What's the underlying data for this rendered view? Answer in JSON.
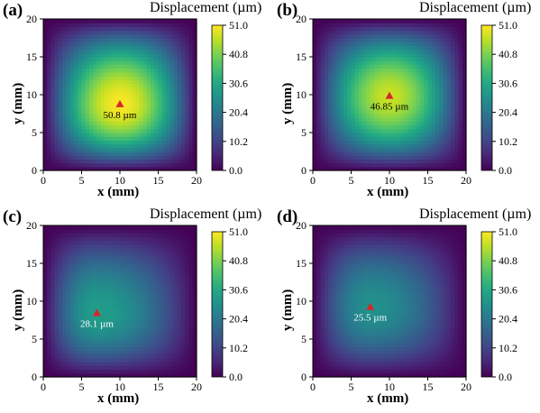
{
  "colorbar": {
    "title": "Displacement (µm)",
    "ticks": [
      "51.0",
      "40.8",
      "30.6",
      "20.4",
      "10.2",
      "0.0"
    ],
    "range": [
      0,
      51
    ]
  },
  "chart_data": [
    {
      "type": "heatmap",
      "panel_label": "(a)",
      "xlabel": "x (mm)",
      "ylabel": "y (mm)",
      "xlim": [
        0,
        20
      ],
      "ylim": [
        0,
        20
      ],
      "xticks": [
        "0",
        "5",
        "10",
        "15",
        "20"
      ],
      "yticks": [
        "0",
        "5",
        "10",
        "15",
        "20"
      ],
      "colorbar_title": "Displacement (µm)",
      "vmin": 0,
      "vmax": 51,
      "peak": {
        "x": 10.0,
        "y": 8.7,
        "value": 50.8
      },
      "annotation": "50.8 µm",
      "marker_color": "#d62728"
    },
    {
      "type": "heatmap",
      "panel_label": "(b)",
      "xlabel": "x (mm)",
      "ylabel": "y (mm)",
      "xlim": [
        0,
        20
      ],
      "ylim": [
        0,
        20
      ],
      "xticks": [
        "0",
        "5",
        "10",
        "15",
        "20"
      ],
      "yticks": [
        "0",
        "5",
        "10",
        "15",
        "20"
      ],
      "colorbar_title": "Displacement (µm)",
      "vmin": 0,
      "vmax": 51,
      "peak": {
        "x": 10.0,
        "y": 9.8,
        "value": 46.85
      },
      "annotation": "46.85 µm",
      "marker_color": "#d62728"
    },
    {
      "type": "heatmap",
      "panel_label": "(c)",
      "xlabel": "x (mm)",
      "ylabel": "y (mm)",
      "xlim": [
        0,
        20
      ],
      "ylim": [
        0,
        20
      ],
      "xticks": [
        "0",
        "5",
        "10",
        "15",
        "20"
      ],
      "yticks": [
        "0",
        "5",
        "10",
        "15",
        "20"
      ],
      "colorbar_title": "Displacement (µm)",
      "vmin": 0,
      "vmax": 51,
      "peak": {
        "x": 7.0,
        "y": 8.4,
        "value": 28.1
      },
      "annotation": "28.1 µm",
      "marker_color": "#d62728"
    },
    {
      "type": "heatmap",
      "panel_label": "(d)",
      "xlabel": "x (mm)",
      "ylabel": "y (mm)",
      "xlim": [
        0,
        20
      ],
      "ylim": [
        0,
        20
      ],
      "xticks": [
        "0",
        "5",
        "10",
        "15",
        "20"
      ],
      "yticks": [
        "0",
        "5",
        "10",
        "15",
        "20"
      ],
      "colorbar_title": "Displacement (µm)",
      "vmin": 0,
      "vmax": 51,
      "peak": {
        "x": 7.5,
        "y": 9.2,
        "value": 25.5
      },
      "annotation": "25.5 µm",
      "marker_color": "#d62728"
    }
  ]
}
